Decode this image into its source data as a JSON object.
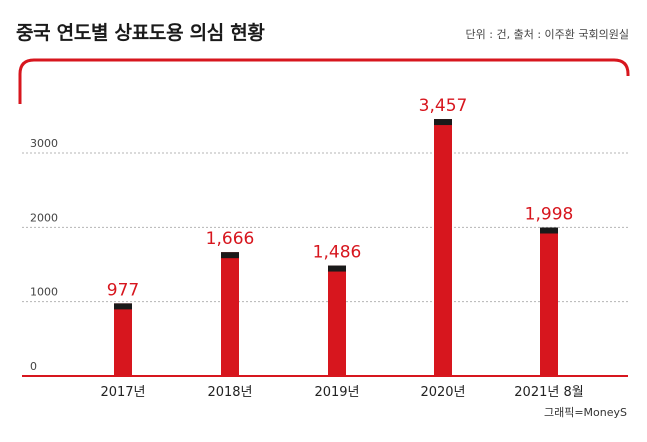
{
  "header": {
    "title": "중국 연도별 상표도용 의심 현황",
    "source": "단위 : 건, 출처 : 이주환 국회의원실"
  },
  "footer": {
    "credit": "그래픽=MoneyS"
  },
  "colors": {
    "accent": "#d7161e",
    "cap": "#1a1a1a",
    "grid": "#b5b5b5",
    "value_label": "#d7161e"
  },
  "chart_data": {
    "type": "bar",
    "categories": [
      "2017년",
      "2018년",
      "2019년",
      "2020년",
      "2021년 8월"
    ],
    "values": [
      977,
      1666,
      1486,
      3457,
      1998
    ],
    "value_labels": [
      "977",
      "1,666",
      "1,486",
      "3,457",
      "1,998"
    ],
    "title": "중국 연도별 상표도용 의심 현황",
    "xlabel": "",
    "ylabel": "",
    "ylim": [
      0,
      3700
    ],
    "yticks": [
      0,
      1000,
      2000,
      3000
    ],
    "ytick_labels": [
      "0",
      "1000",
      "2000",
      "3000"
    ],
    "grid": true,
    "legend": "none"
  }
}
